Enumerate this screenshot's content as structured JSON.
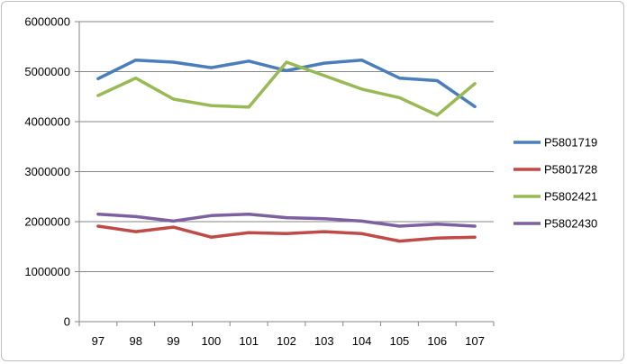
{
  "chart_data": {
    "type": "line",
    "title": "",
    "xlabel": "",
    "ylabel": "",
    "categories": [
      "97",
      "98",
      "99",
      "100",
      "101",
      "102",
      "103",
      "104",
      "105",
      "106",
      "107"
    ],
    "ylim": [
      0,
      6000000
    ],
    "yticks": [
      "0",
      "1000000",
      "2000000",
      "3000000",
      "4000000",
      "5000000",
      "6000000"
    ],
    "grid": true,
    "legend_position": "right",
    "series": [
      {
        "name": "P5801719",
        "color": "#4a7ebb",
        "values": [
          4860000,
          5230000,
          5190000,
          5080000,
          5210000,
          5020000,
          5170000,
          5230000,
          4870000,
          4820000,
          4300000
        ]
      },
      {
        "name": "P5801728",
        "color": "#be4b48",
        "values": [
          1910000,
          1800000,
          1890000,
          1690000,
          1780000,
          1760000,
          1800000,
          1760000,
          1610000,
          1670000,
          1690000
        ]
      },
      {
        "name": "P5802421",
        "color": "#98b954",
        "values": [
          4520000,
          4870000,
          4450000,
          4320000,
          4290000,
          5190000,
          4920000,
          4650000,
          4480000,
          4130000,
          4760000
        ]
      },
      {
        "name": "P5802430",
        "color": "#7d60a0",
        "values": [
          2150000,
          2100000,
          2010000,
          2120000,
          2150000,
          2080000,
          2060000,
          2010000,
          1910000,
          1950000,
          1910000
        ]
      }
    ]
  }
}
